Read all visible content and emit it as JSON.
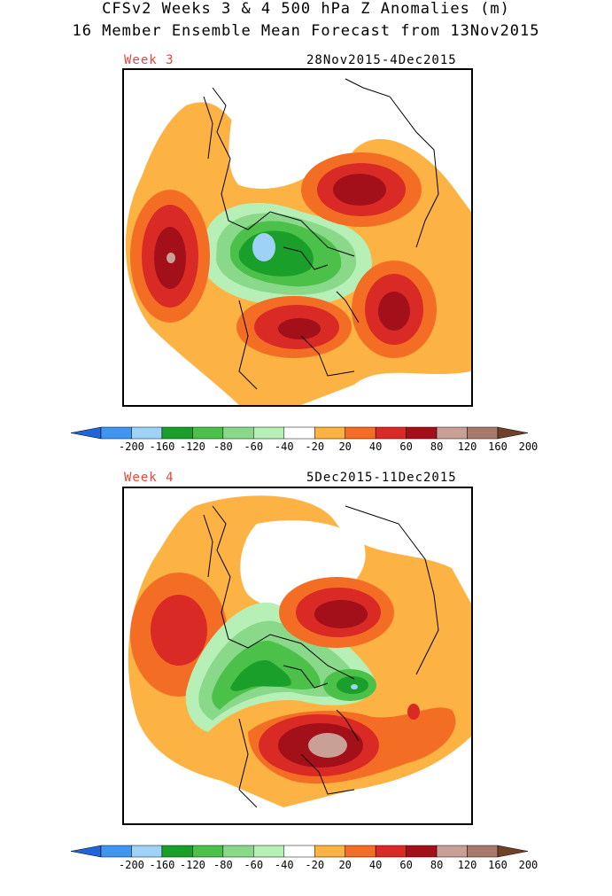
{
  "title_line1": "CFSv2 Weeks 3 & 4 500 hPa Z Anomalies (m)",
  "title_line2": "16 Member Ensemble Mean Forecast from 13Nov2015",
  "panels": [
    {
      "week_label": "Week 3",
      "date_range": "28Nov2015-4Dec2015"
    },
    {
      "week_label": "Week 4",
      "date_range": "5Dec2015-11Dec2015"
    }
  ],
  "colorbar": {
    "ticks": [
      "-200",
      "-160",
      "-120",
      "-80",
      "-60",
      "-40",
      "-20",
      "20",
      "40",
      "60",
      "80",
      "120",
      "160",
      "200"
    ],
    "colors": [
      "#1f65d8",
      "#3f96f0",
      "#9fd2f7",
      "#1aa02a",
      "#4bc14a",
      "#8ad98a",
      "#b6f0b6",
      "#ffffff",
      "#fcb344",
      "#f46d24",
      "#d92a25",
      "#a3101a",
      "#c8a096",
      "#a77a6c",
      "#6e4128"
    ]
  }
}
